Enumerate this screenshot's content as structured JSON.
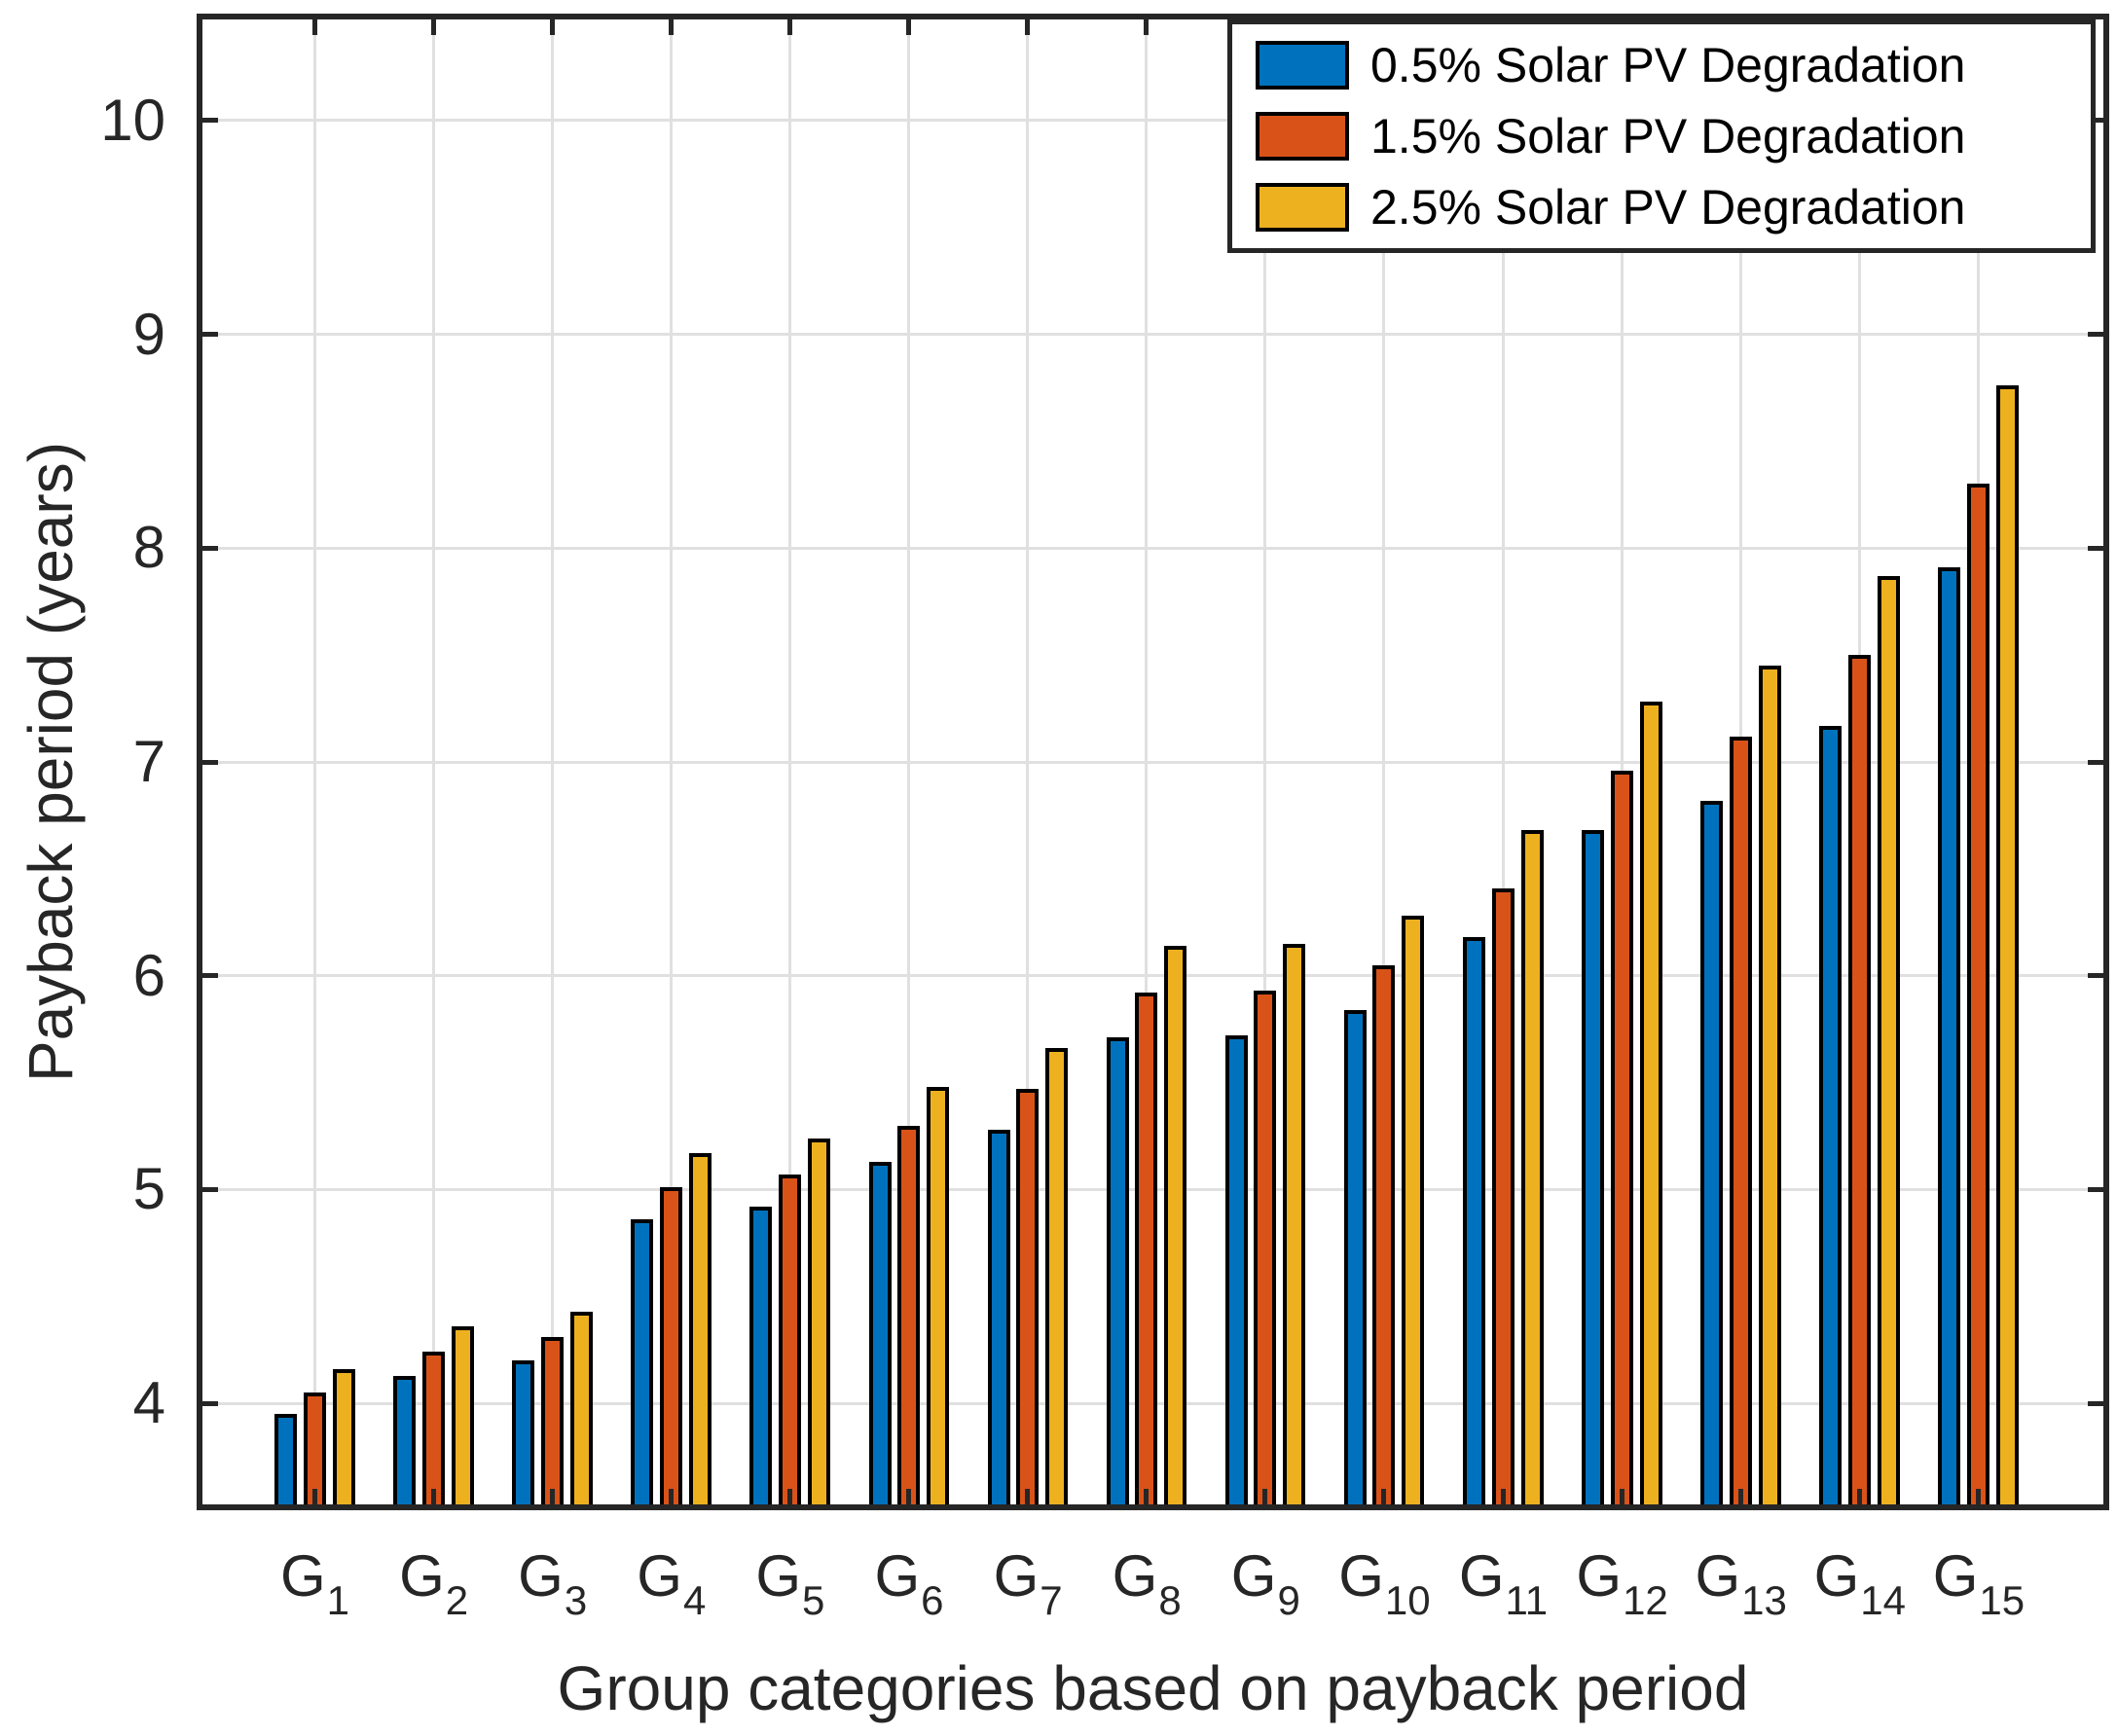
{
  "figure": {
    "background": "#ffffff",
    "frame_color": "#262626",
    "grid_color": "#e0e0e0"
  },
  "chart_data": {
    "type": "bar",
    "title": "",
    "xlabel": "Group categories based on payback period",
    "ylabel": "Payback period (years)",
    "categories": [
      {
        "base": "G",
        "sub": "1"
      },
      {
        "base": "G",
        "sub": "2"
      },
      {
        "base": "G",
        "sub": "3"
      },
      {
        "base": "G",
        "sub": "4"
      },
      {
        "base": "G",
        "sub": "5"
      },
      {
        "base": "G",
        "sub": "6"
      },
      {
        "base": "G",
        "sub": "7"
      },
      {
        "base": "G",
        "sub": "8"
      },
      {
        "base": "G",
        "sub": "9"
      },
      {
        "base": "G",
        "sub": "10"
      },
      {
        "base": "G",
        "sub": "11"
      },
      {
        "base": "G",
        "sub": "12"
      },
      {
        "base": "G",
        "sub": "13"
      },
      {
        "base": "G",
        "sub": "14"
      },
      {
        "base": "G",
        "sub": "15"
      }
    ],
    "series": [
      {
        "name": "0.5% Solar PV Degradation",
        "color": "#0072BD",
        "values": [
          3.95,
          4.13,
          4.2,
          4.86,
          4.92,
          5.13,
          5.28,
          5.71,
          5.72,
          5.84,
          6.18,
          6.68,
          6.82,
          7.17,
          7.91
        ]
      },
      {
        "name": "1.5% Solar PV Degradation",
        "color": "#D95319",
        "values": [
          4.05,
          4.24,
          4.31,
          5.01,
          5.07,
          5.3,
          5.47,
          5.92,
          5.93,
          6.05,
          6.41,
          6.96,
          7.12,
          7.5,
          8.3
        ]
      },
      {
        "name": "2.5% Solar PV Degradation",
        "color": "#EDB120",
        "values": [
          4.16,
          4.36,
          4.43,
          5.17,
          5.24,
          5.48,
          5.66,
          6.14,
          6.15,
          6.28,
          6.68,
          7.28,
          7.45,
          7.87,
          8.76
        ]
      }
    ],
    "ylim": [
      3.5,
      10.5
    ],
    "yticks": [
      4,
      5,
      6,
      7,
      8,
      9,
      10
    ],
    "grid": true,
    "legend_position": "top-right",
    "bar_edge_color": "#000000"
  }
}
